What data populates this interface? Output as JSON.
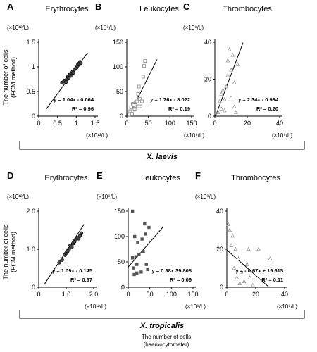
{
  "y_axis_label": [
    "The number of cells",
    "(FCM method)"
  ],
  "x_axis_label": [
    "The number of cells",
    "(haemocytometer)"
  ],
  "species": [
    "X. laevis",
    "X. tropicalis"
  ],
  "chart_data": [
    {
      "panel": "A",
      "type": "scatter",
      "title": "Erythrocytes",
      "x_unit": "(×10¹²/L)",
      "y_unit": "(×10¹²/L)",
      "xlim": [
        0,
        1.5
      ],
      "ylim": [
        0,
        1.5
      ],
      "xticks": [
        "0",
        "0.5",
        "1",
        "1.5"
      ],
      "yticks": [
        "0",
        "0.5",
        "1",
        "1.5"
      ],
      "marker": "circle-filled",
      "points": [
        [
          0.62,
          0.68
        ],
        [
          0.68,
          0.72
        ],
        [
          0.72,
          0.69
        ],
        [
          0.75,
          0.75
        ],
        [
          0.78,
          0.8
        ],
        [
          0.8,
          0.78
        ],
        [
          0.82,
          0.84
        ],
        [
          0.85,
          0.86
        ],
        [
          0.87,
          0.82
        ],
        [
          0.9,
          0.9
        ],
        [
          0.92,
          0.88
        ],
        [
          0.95,
          0.95
        ],
        [
          1.0,
          0.98
        ],
        [
          1.03,
          1.02
        ],
        [
          1.05,
          1.06
        ],
        [
          1.08,
          1.05
        ],
        [
          1.1,
          1.1
        ],
        [
          1.12,
          1.08
        ]
      ],
      "fit": {
        "slope": 1.04,
        "intercept": -0.064,
        "x_range": [
          0.2,
          1.3
        ]
      },
      "equation": "y = 1.04x - 0.064",
      "r2": "R² = 0.96"
    },
    {
      "panel": "B",
      "type": "scatter",
      "title": "Leukocytes",
      "x_unit": "(×10⁹/L)",
      "y_unit": "(×10⁹/L)",
      "xlim": [
        0,
        150
      ],
      "ylim": [
        0,
        150
      ],
      "xticks": [
        "0",
        "50",
        "100",
        "150"
      ],
      "yticks": [
        "0",
        "50",
        "100",
        "150"
      ],
      "marker": "square-open",
      "points": [
        [
          5,
          3
        ],
        [
          8,
          10
        ],
        [
          10,
          18
        ],
        [
          12,
          5
        ],
        [
          14,
          25
        ],
        [
          16,
          22
        ],
        [
          18,
          15
        ],
        [
          20,
          28
        ],
        [
          22,
          38
        ],
        [
          24,
          30
        ],
        [
          25,
          20
        ],
        [
          26,
          45
        ],
        [
          28,
          60
        ],
        [
          30,
          35
        ],
        [
          32,
          20
        ],
        [
          35,
          30
        ],
        [
          38,
          80
        ],
        [
          40,
          102
        ],
        [
          42,
          112
        ]
      ],
      "fit": {
        "slope": 1.76,
        "intercept": -8.022,
        "x_range": [
          4.6,
          70
        ]
      },
      "equation": "y = 1.76x - 8.022",
      "r2": "R² = 0.19"
    },
    {
      "panel": "C",
      "type": "scatter",
      "title": "Thrombocytes",
      "x_unit": "(×10⁹/L)",
      "y_unit": "(×10⁹/L)",
      "xlim": [
        0,
        40
      ],
      "ylim": [
        0,
        40
      ],
      "xticks": [
        "0",
        "20",
        "40"
      ],
      "yticks": [
        "0",
        "20",
        "40"
      ],
      "marker": "triangle-open",
      "points": [
        [
          2,
          2
        ],
        [
          3,
          8
        ],
        [
          4,
          4
        ],
        [
          4,
          12
        ],
        [
          5,
          14
        ],
        [
          6,
          3
        ],
        [
          6,
          9
        ],
        [
          7,
          16
        ],
        [
          8,
          22
        ],
        [
          8,
          30
        ],
        [
          9,
          36
        ],
        [
          10,
          25
        ],
        [
          10,
          10
        ],
        [
          11,
          33
        ],
        [
          12,
          18
        ],
        [
          12,
          5
        ],
        [
          13,
          2
        ],
        [
          14,
          28
        ]
      ],
      "fit": {
        "slope": 2.34,
        "intercept": -0.934,
        "x_range": [
          0.4,
          17.4
        ]
      },
      "equation": "y = 2.34x - 0.934",
      "r2": "R² = 0.20"
    },
    {
      "panel": "D",
      "type": "scatter",
      "title": "Erythrocytes",
      "x_unit": "(×10¹²/L)",
      "y_unit": "(×10¹²/L)",
      "xlim": [
        0,
        2.0
      ],
      "ylim": [
        0,
        2.0
      ],
      "xticks": [
        "0",
        "1.0",
        "2.0"
      ],
      "yticks": [
        "0",
        "1.0",
        "2.0"
      ],
      "marker": "circle-filled",
      "points": [
        [
          0.75,
          0.65
        ],
        [
          0.85,
          0.72
        ],
        [
          0.95,
          0.85
        ],
        [
          1.0,
          0.9
        ],
        [
          1.05,
          0.95
        ],
        [
          1.1,
          1.0
        ],
        [
          1.15,
          1.1
        ],
        [
          1.2,
          1.05
        ],
        [
          1.25,
          1.15
        ],
        [
          1.3,
          1.2
        ],
        [
          1.35,
          1.25
        ],
        [
          1.4,
          1.3
        ],
        [
          1.45,
          1.28
        ],
        [
          1.5,
          1.35
        ],
        [
          1.55,
          1.42
        ]
      ],
      "fit": {
        "slope": 1.09,
        "intercept": -0.145,
        "x_range": [
          0.2,
          1.65
        ]
      },
      "equation": "y = 1.09x - 0.145",
      "r2": "R² = 0.97"
    },
    {
      "panel": "E",
      "type": "scatter",
      "title": "Leukocytes",
      "x_unit": "(×10⁹/L)",
      "y_unit": "(×10⁹/L)",
      "xlim": [
        0,
        150
      ],
      "ylim": [
        0,
        150
      ],
      "xticks": [
        "0",
        "50",
        "100",
        "150"
      ],
      "yticks": [
        "0",
        "50",
        "100",
        "150"
      ],
      "marker": "square-filled",
      "points": [
        [
          10,
          150
        ],
        [
          10,
          58
        ],
        [
          12,
          38
        ],
        [
          14,
          25
        ],
        [
          15,
          100
        ],
        [
          18,
          60
        ],
        [
          20,
          45
        ],
        [
          20,
          28
        ],
        [
          22,
          88
        ],
        [
          25,
          65
        ],
        [
          30,
          30
        ],
        [
          32,
          95
        ],
        [
          35,
          70
        ],
        [
          38,
          125
        ],
        [
          40,
          105
        ],
        [
          42,
          45
        ],
        [
          45,
          35
        ],
        [
          48,
          118
        ]
      ],
      "fit": {
        "slope": 0.98,
        "intercept": 39.808,
        "x_range": [
          0,
          80
        ]
      },
      "equation": "y = 0.98x 39.808",
      "r2": "R² = 0.09"
    },
    {
      "panel": "F",
      "type": "scatter",
      "title": "Thrombocytes",
      "x_unit": "(×10⁹/L)",
      "y_unit": "(×10⁹/L)",
      "xlim": [
        0,
        40
      ],
      "ylim": [
        0,
        40
      ],
      "xticks": [
        "0",
        "20",
        "40"
      ],
      "yticks": [
        "0",
        "20",
        "40"
      ],
      "marker": "triangle-open",
      "points": [
        [
          1,
          33
        ],
        [
          2,
          30
        ],
        [
          3,
          22
        ],
        [
          4,
          27
        ],
        [
          5,
          10
        ],
        [
          6,
          20
        ],
        [
          7,
          5
        ],
        [
          8,
          15
        ],
        [
          9,
          2
        ],
        [
          10,
          8
        ],
        [
          12,
          3
        ],
        [
          14,
          12
        ],
        [
          15,
          20
        ],
        [
          16,
          5
        ],
        [
          18,
          1
        ],
        [
          22,
          20
        ],
        [
          25,
          4
        ],
        [
          30,
          15
        ]
      ],
      "fit": {
        "slope": -0.67,
        "intercept": 19.615,
        "x_range": [
          0,
          29.3
        ]
      },
      "equation": "y = - 0.67x + 19.615",
      "r2": "R² = 0.11"
    }
  ]
}
